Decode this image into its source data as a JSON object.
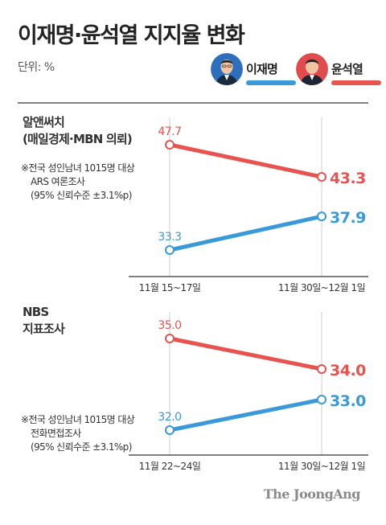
{
  "title": "이재명·윤석열 지지율 변화",
  "unit": "단위: %",
  "legend": [
    {
      "name": "이재명",
      "color": "#3a9ad9",
      "avatar_color": "#2e6fbd"
    },
    {
      "name": "윤석열",
      "color": "#e8534f",
      "avatar_color": "#e04b4e"
    }
  ],
  "sections": [
    {
      "label_lines": [
        "알앤써치",
        "(매일경제·MBN 의뢰)"
      ],
      "note_lines": [
        "※전국 성인남녀 1015명 대상",
        "ARS 여론조사",
        "(95% 신뢰수준 ±3.1%p)"
      ]
    },
    {
      "label_lines": [
        "NBS",
        "지표조사"
      ],
      "note_lines": [
        "※전국 성인남녀 1015명 대상",
        "전화면접조사",
        "(95% 신뢰수준 ±3.1%p)"
      ]
    }
  ],
  "chart_data": [
    {
      "type": "line",
      "x": [
        "11월 15~17일",
        "11월 30일~12월 1일"
      ],
      "series": [
        {
          "name": "이재명",
          "values": [
            33.3,
            37.9
          ],
          "labels": [
            "33.3",
            "37.9"
          ],
          "color": "#3a9ad9"
        },
        {
          "name": "윤석열",
          "values": [
            47.7,
            43.3
          ],
          "labels": [
            "47.7",
            "43.3"
          ],
          "color": "#e8534f"
        }
      ]
    },
    {
      "type": "line",
      "x": [
        "11월 22~24일",
        "11월 30일~12월 1일"
      ],
      "series": [
        {
          "name": "이재명",
          "values": [
            32.0,
            33.0
          ],
          "labels": [
            "32.0",
            "33.0"
          ],
          "color": "#3a9ad9"
        },
        {
          "name": "윤석열",
          "values": [
            35.0,
            34.0
          ],
          "labels": [
            "35.0",
            "34.0"
          ],
          "color": "#e8534f"
        }
      ]
    }
  ],
  "brand": "The JoongAng"
}
